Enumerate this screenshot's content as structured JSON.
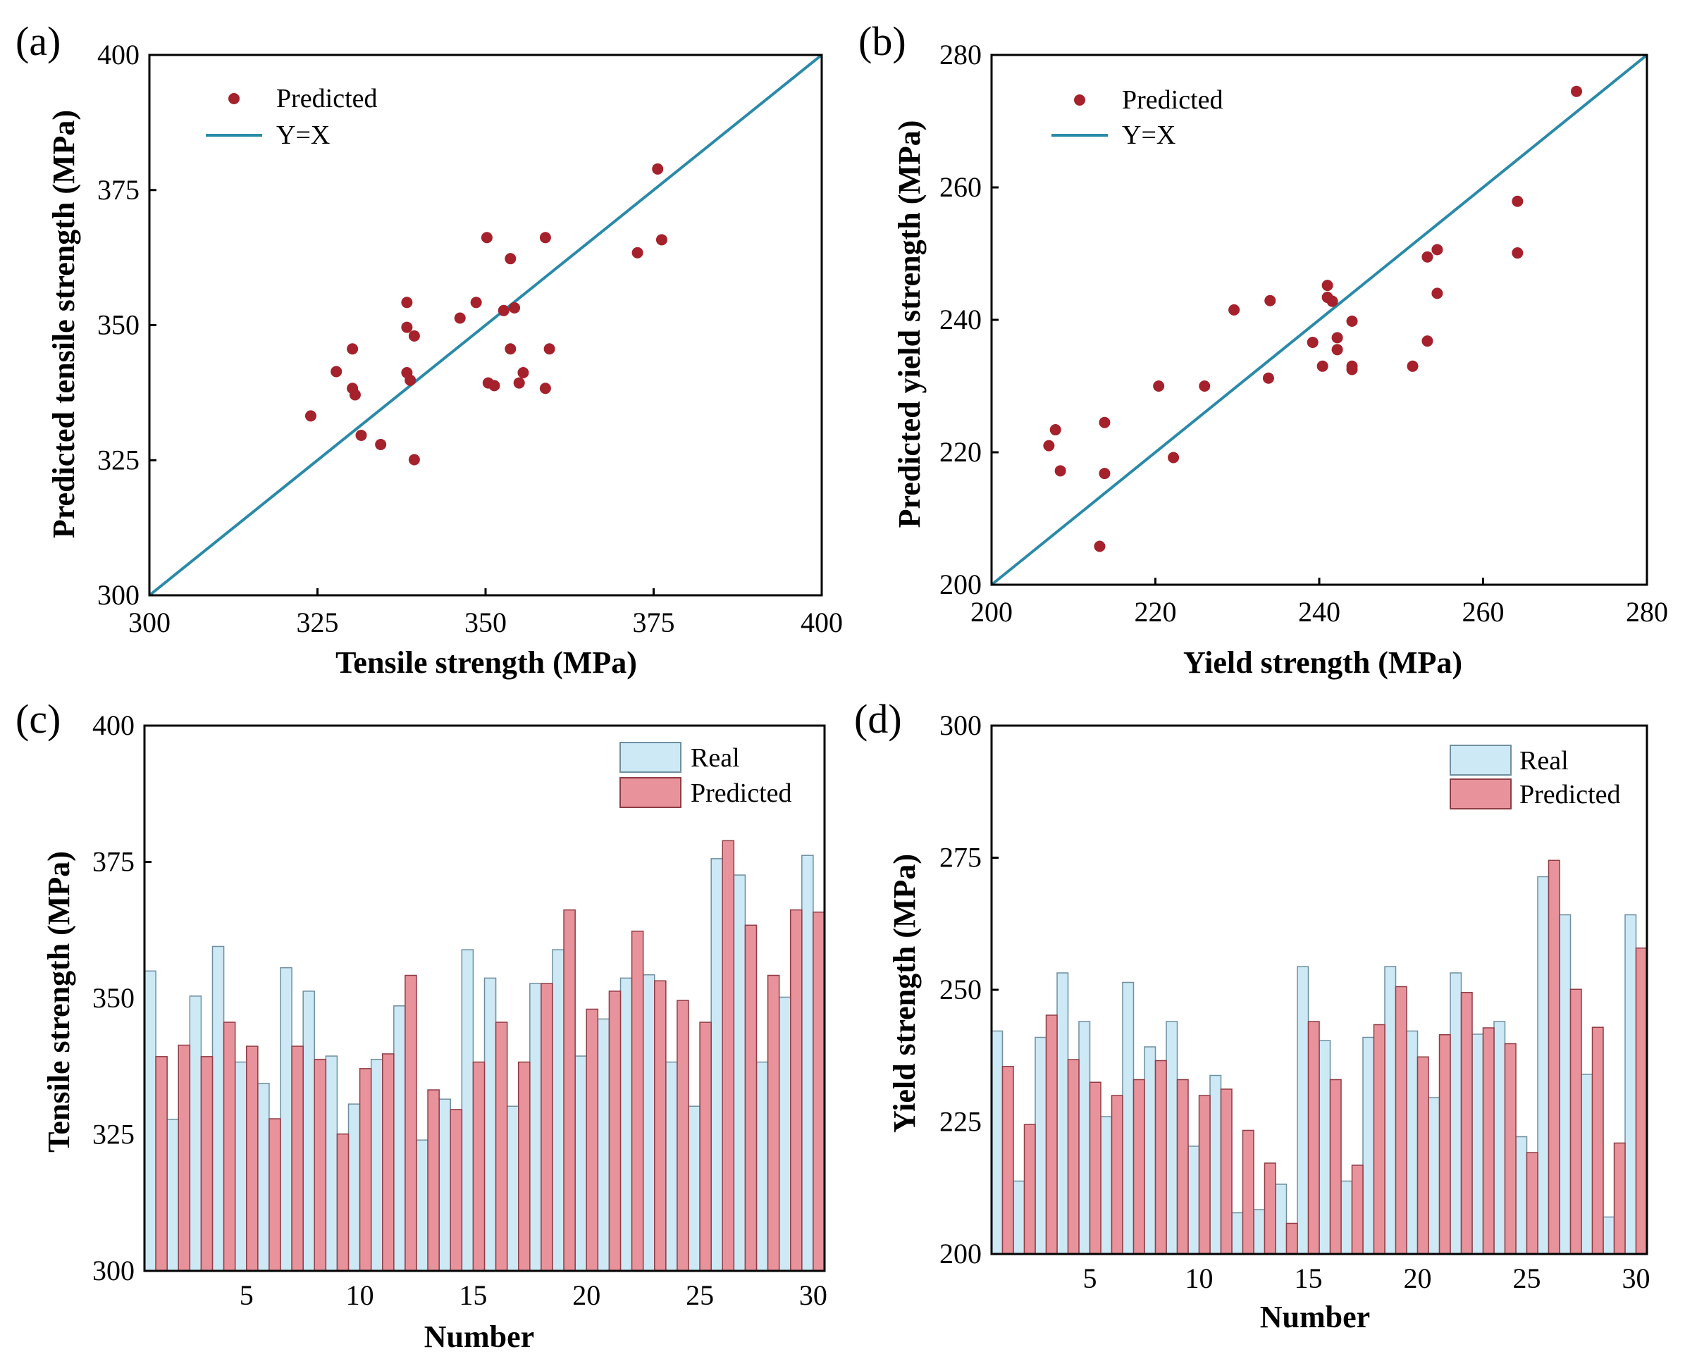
{
  "colors": {
    "point": "#a5212b",
    "line": "#2a8aa8",
    "real_fill": "#cde9f6",
    "real_stroke": "#6f8f9f",
    "pred_fill": "#e8939b",
    "pred_stroke": "#8f3c45",
    "axis": "#000000"
  },
  "chart_data": [
    {
      "id": "a",
      "panel_label": "(a)",
      "type": "scatter",
      "xlabel": "Tensile strength (MPa)",
      "ylabel": "Predicted tensile strength (MPa)",
      "xlim": [
        300,
        400
      ],
      "ylim": [
        300,
        400
      ],
      "xticks": [
        300,
        325,
        350,
        375,
        400
      ],
      "yticks": [
        300,
        325,
        350,
        375,
        400
      ],
      "legend": {
        "position": "top-left",
        "entries": [
          "Predicted",
          "Y=X"
        ]
      },
      "reference_line": "Y=X",
      "x": [
        355.0,
        327.8,
        350.4,
        359.5,
        338.3,
        334.4,
        355.6,
        351.3,
        339.4,
        330.6,
        338.8,
        348.6,
        324.0,
        331.5,
        358.9,
        353.7,
        330.2,
        352.7,
        358.9,
        339.4,
        346.2,
        353.7,
        354.3,
        338.3,
        330.2,
        375.6,
        372.6,
        338.3,
        350.2,
        376.2
      ],
      "y": [
        339.3,
        341.4,
        339.3,
        345.6,
        341.2,
        327.9,
        341.2,
        338.8,
        325.1,
        337.1,
        339.8,
        354.2,
        333.2,
        329.6,
        338.3,
        345.6,
        338.3,
        352.7,
        366.2,
        348.0,
        351.3,
        362.3,
        353.2,
        349.6,
        345.6,
        378.9,
        363.4,
        354.2,
        366.2,
        365.8
      ]
    },
    {
      "id": "b",
      "panel_label": "(b)",
      "type": "scatter",
      "xlabel": "Yield strength (MPa)",
      "ylabel": "Predicted yield strength (MPa)",
      "xlim": [
        200,
        280
      ],
      "ylim": [
        200,
        280
      ],
      "xticks": [
        200,
        220,
        240,
        260,
        280
      ],
      "yticks": [
        200,
        220,
        240,
        260,
        280
      ],
      "legend": {
        "position": "top-left",
        "entries": [
          "Predicted",
          "Y=X"
        ]
      },
      "reference_line": "Y=X",
      "x": [
        242.2,
        213.8,
        241.0,
        253.2,
        244.0,
        226.0,
        251.4,
        239.2,
        244.0,
        220.4,
        233.8,
        207.8,
        208.4,
        213.2,
        254.4,
        240.4,
        213.8,
        241.0,
        254.4,
        242.2,
        229.6,
        253.2,
        241.6,
        244.0,
        222.2,
        271.4,
        264.2,
        234.0,
        207.0,
        264.2
      ],
      "y": [
        235.5,
        224.5,
        245.2,
        236.8,
        232.5,
        230.0,
        233.0,
        236.6,
        233.0,
        230.0,
        231.2,
        223.4,
        217.2,
        205.8,
        244.0,
        233.0,
        216.8,
        243.4,
        250.6,
        237.3,
        241.5,
        249.5,
        242.8,
        239.8,
        219.2,
        274.5,
        250.1,
        242.9,
        221.0,
        257.9
      ]
    },
    {
      "id": "c",
      "panel_label": "(c)",
      "type": "bar",
      "xlabel": "Number",
      "ylabel": "Tensile strength (MPa)",
      "ylim": [
        300,
        400
      ],
      "xticks": [
        5,
        10,
        15,
        20,
        25,
        30
      ],
      "yticks": [
        300,
        325,
        350,
        375,
        400
      ],
      "legend": {
        "position": "top-right",
        "entries": [
          "Real",
          "Predicted"
        ]
      },
      "categories": [
        1,
        2,
        3,
        4,
        5,
        6,
        7,
        8,
        9,
        10,
        11,
        12,
        13,
        14,
        15,
        16,
        17,
        18,
        19,
        20,
        21,
        22,
        23,
        24,
        25,
        26,
        27,
        28,
        29,
        30
      ],
      "series": [
        {
          "name": "Real",
          "values": [
            355.0,
            327.8,
            350.4,
            359.5,
            338.3,
            334.4,
            355.6,
            351.3,
            339.4,
            330.6,
            338.8,
            348.6,
            324.0,
            331.5,
            358.9,
            353.7,
            330.2,
            352.7,
            358.9,
            339.4,
            346.2,
            353.7,
            354.3,
            338.3,
            330.2,
            375.6,
            372.6,
            338.3,
            350.2,
            376.2
          ]
        },
        {
          "name": "Predicted",
          "values": [
            339.3,
            341.4,
            339.3,
            345.6,
            341.2,
            327.9,
            341.2,
            338.8,
            325.1,
            337.1,
            339.8,
            354.2,
            333.2,
            329.6,
            338.3,
            345.6,
            338.3,
            352.7,
            366.2,
            348.0,
            351.3,
            362.3,
            353.2,
            349.6,
            345.6,
            378.9,
            363.4,
            354.2,
            366.2,
            365.8
          ]
        }
      ]
    },
    {
      "id": "d",
      "panel_label": "(d)",
      "type": "bar",
      "xlabel": "Number",
      "ylabel": "Yield strength (MPa)",
      "ylim": [
        200,
        300
      ],
      "xticks": [
        5,
        10,
        15,
        20,
        25,
        30
      ],
      "yticks": [
        200,
        225,
        250,
        275,
        300
      ],
      "legend": {
        "position": "top-right",
        "entries": [
          "Real",
          "Predicted"
        ]
      },
      "categories": [
        1,
        2,
        3,
        4,
        5,
        6,
        7,
        8,
        9,
        10,
        11,
        12,
        13,
        14,
        15,
        16,
        17,
        18,
        19,
        20,
        21,
        22,
        23,
        24,
        25,
        26,
        27,
        28,
        29,
        30
      ],
      "series": [
        {
          "name": "Real",
          "values": [
            242.2,
            213.8,
            241.0,
            253.2,
            244.0,
            226.0,
            251.4,
            239.2,
            244.0,
            220.4,
            233.8,
            207.8,
            208.4,
            213.2,
            254.4,
            240.4,
            213.8,
            241.0,
            254.4,
            242.2,
            229.6,
            253.2,
            241.6,
            244.0,
            222.2,
            271.4,
            264.2,
            234.0,
            207.0,
            264.2
          ]
        },
        {
          "name": "Predicted",
          "values": [
            235.5,
            224.5,
            245.2,
            236.8,
            232.5,
            230.0,
            233.0,
            236.6,
            233.0,
            230.0,
            231.2,
            223.4,
            217.2,
            205.8,
            244.0,
            233.0,
            216.8,
            243.4,
            250.6,
            237.3,
            241.5,
            249.5,
            242.8,
            239.8,
            219.2,
            274.5,
            250.1,
            242.9,
            221.0,
            257.9
          ]
        }
      ]
    }
  ]
}
